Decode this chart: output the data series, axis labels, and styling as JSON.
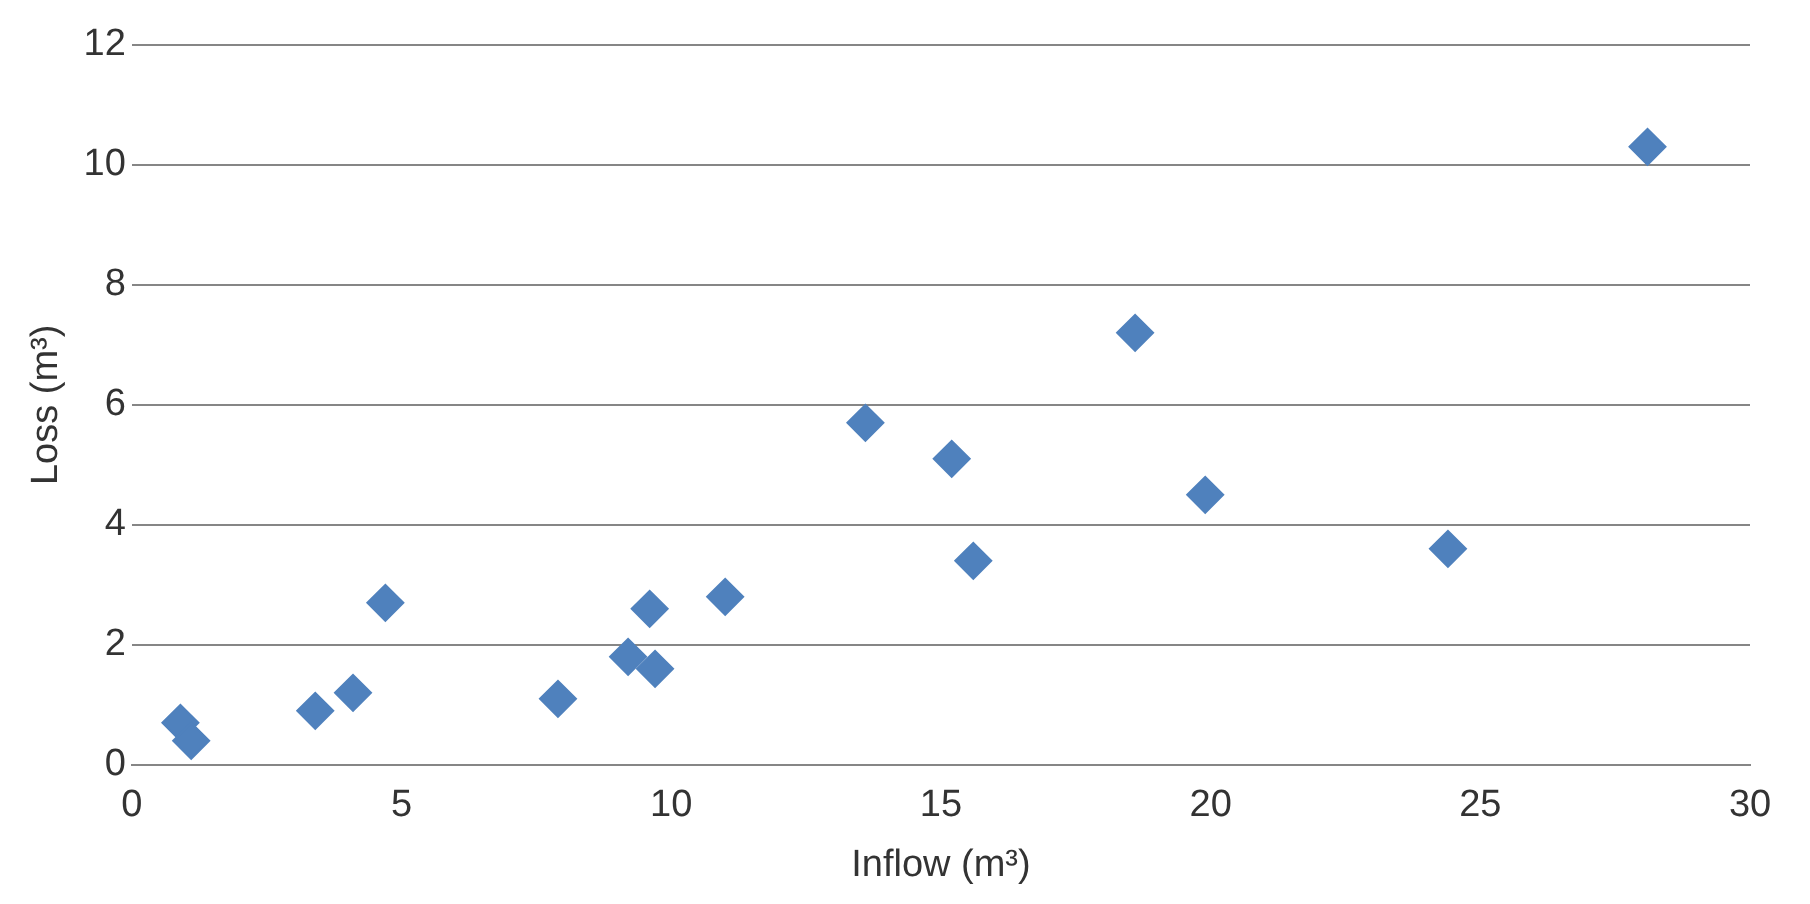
{
  "chart_data": {
    "type": "scatter",
    "xlabel": "Inflow (m³)",
    "ylabel": "Loss (m³)",
    "x": [
      0.9,
      1.1,
      3.4,
      4.1,
      4.7,
      7.9,
      9.2,
      9.7,
      9.6,
      11.0,
      13.6,
      15.2,
      15.6,
      18.6,
      19.9,
      24.4,
      28.1
    ],
    "values": [
      0.7,
      0.4,
      0.9,
      1.2,
      2.7,
      1.1,
      1.8,
      1.6,
      2.6,
      2.8,
      5.7,
      5.1,
      3.4,
      7.2,
      4.5,
      3.6,
      10.3
    ],
    "color": "#4f81bd",
    "marker": "diamond",
    "grid": "y",
    "xlim": [
      0,
      30
    ],
    "xticks": [
      0,
      5,
      10,
      15,
      20,
      25,
      30
    ],
    "ylim": [
      0,
      12
    ],
    "yticks": [
      0,
      2,
      4,
      6,
      8,
      10,
      12
    ]
  }
}
